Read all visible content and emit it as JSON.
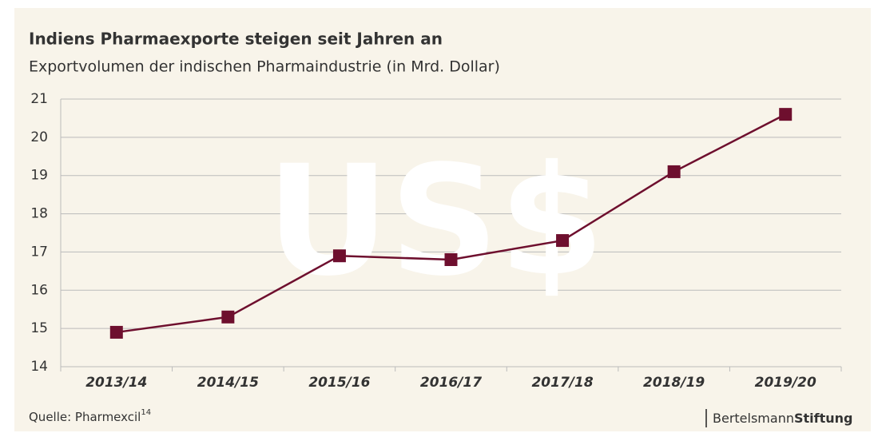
{
  "chart_data": {
    "type": "line",
    "title": "Indiens Pharmaexporte steigen seit Jahren an",
    "subtitle": "Exportvolumen der indischen Pharmaindustrie (in Mrd. Dollar)",
    "watermark": "US$",
    "categories": [
      "2013/14",
      "2014/15",
      "2015/16",
      "2016/17",
      "2017/18",
      "2018/19",
      "2019/20"
    ],
    "series": [
      {
        "name": "Exportvolumen",
        "color": "#6e0f2e",
        "values": [
          14.9,
          15.3,
          16.9,
          16.8,
          17.3,
          19.1,
          20.6
        ]
      }
    ],
    "ylim": [
      14,
      21
    ],
    "yticks": [
      14,
      15,
      16,
      17,
      18,
      19,
      20,
      21
    ],
    "grid": true,
    "source": "Quelle: Pharmexcil",
    "source_ref": "14"
  },
  "logo": {
    "part1": "Bertelsmann",
    "part2": "Stiftung"
  }
}
